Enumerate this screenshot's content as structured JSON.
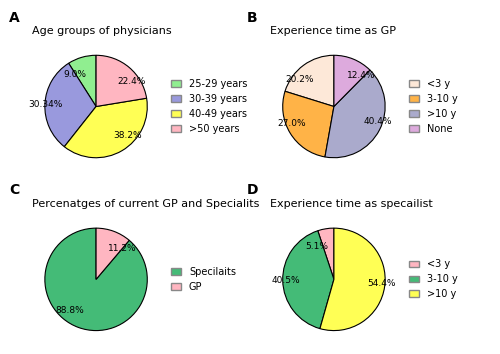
{
  "chart_data": [
    {
      "type": "pie",
      "title": "Age groups of physicians",
      "annotations": [
        "A"
      ],
      "categories": [
        "25-29 years",
        "30-39 years",
        "40-49 years",
        ">50 years"
      ],
      "values": [
        9.0,
        30.34,
        38.2,
        22.4
      ],
      "value_labels": [
        "9.0%",
        "30.34%",
        "38.2%",
        "22.4%"
      ],
      "colors": [
        "#90ee90",
        "#9999dd",
        "#ffff55",
        "#ffb6c1"
      ],
      "data_labels": true,
      "legend": "center left"
    },
    {
      "type": "pie",
      "title": "Experience time as GP",
      "annotations": [
        "B"
      ],
      "categories": [
        "<3 y",
        "3-10 y",
        ">10 y",
        "None"
      ],
      "values": [
        20.2,
        27.0,
        40.4,
        12.4
      ],
      "value_labels": [
        "20.2%",
        "27.0%",
        "40.4%",
        "12.4%"
      ],
      "colors": [
        "#fde8d8",
        "#ffb347",
        "#aaaacc",
        "#ddaadd"
      ],
      "data_labels": true,
      "legend": "center left"
    },
    {
      "type": "pie",
      "title": "Percenatges of current GP and Specialits",
      "annotations": [
        "C"
      ],
      "categories": [
        "Specilaits",
        "GP"
      ],
      "values": [
        88.8,
        11.2
      ],
      "value_labels": [
        "88.8%",
        "11.2%"
      ],
      "colors": [
        "#44bb77",
        "#ffb6c1"
      ],
      "data_labels": true,
      "legend": "center left"
    },
    {
      "type": "pie",
      "title": "Experience time as specailist",
      "annotations": [
        "D"
      ],
      "categories": [
        "<3 y",
        "3-10 y",
        ">10 y"
      ],
      "values": [
        5.1,
        40.5,
        54.4
      ],
      "value_labels": [
        "5.1%",
        "40.5%",
        "54.4%"
      ],
      "colors": [
        "#ffb6c1",
        "#44bb77",
        "#ffff55"
      ],
      "data_labels": true,
      "legend": "center left"
    }
  ]
}
